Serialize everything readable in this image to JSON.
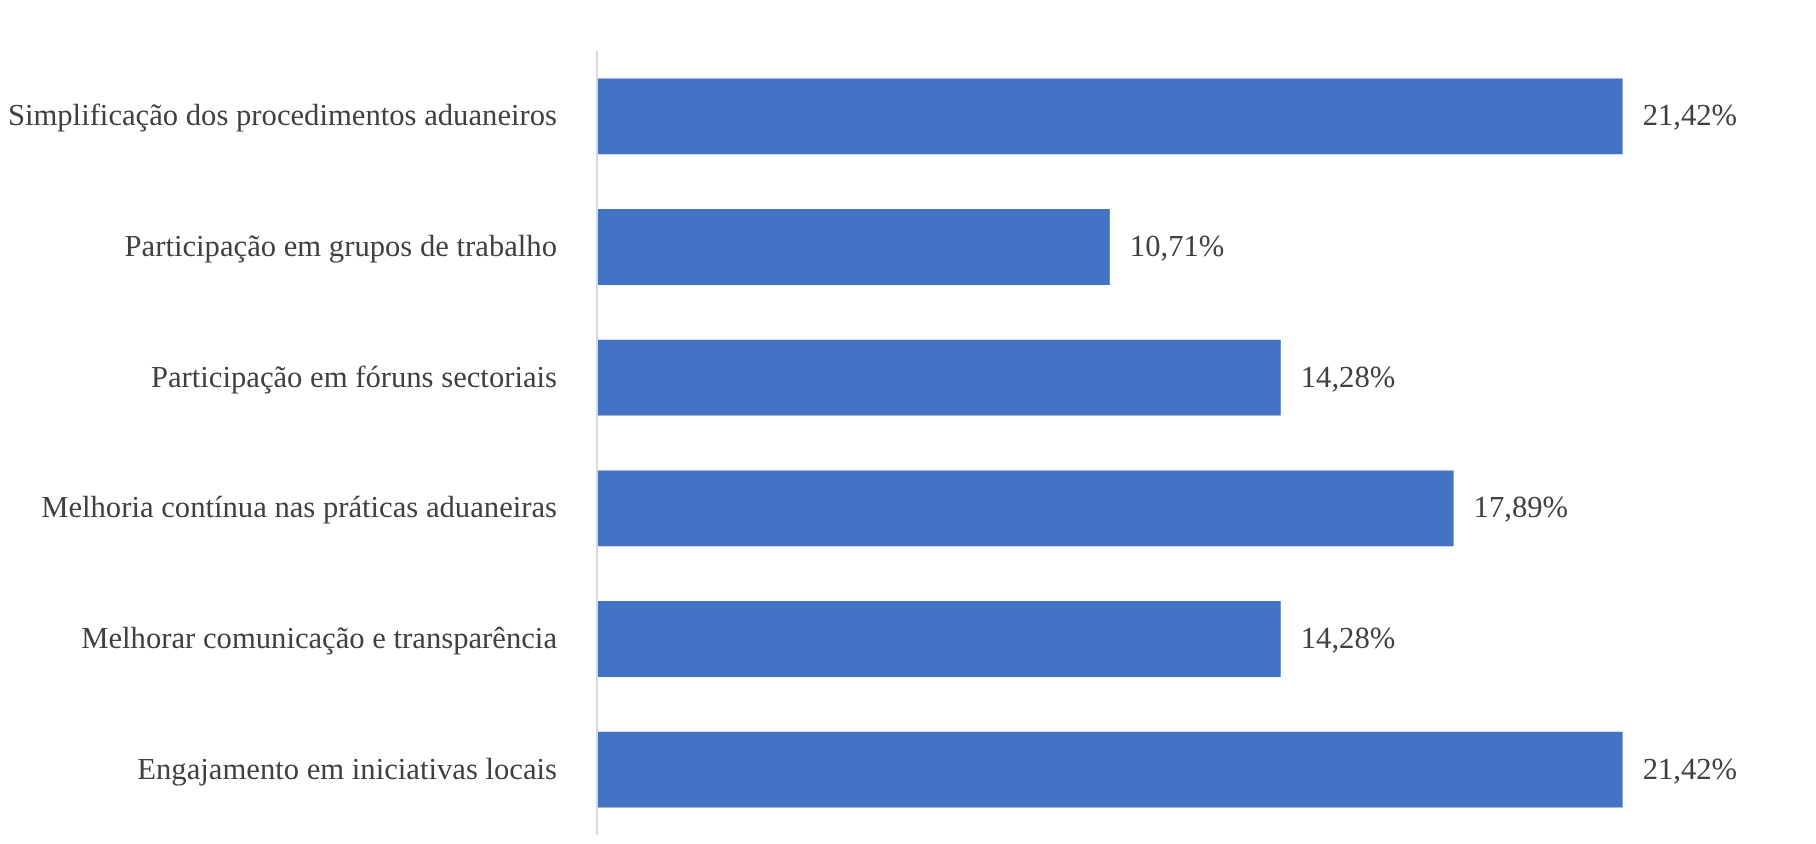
{
  "chart_data": {
    "type": "bar",
    "orientation": "horizontal",
    "categories": [
      "Simplificação dos procedimentos aduaneiros",
      "Participação em grupos de trabalho",
      "Participação em fóruns sectoriais",
      "Melhoria contínua nas práticas aduaneiras",
      "Melhorar comunicação e transparência",
      "Engajamento em iniciativas locais"
    ],
    "values": [
      21.42,
      10.71,
      14.28,
      17.89,
      14.28,
      21.42
    ],
    "value_labels": [
      "21,42%",
      "10,71%",
      "14,28%",
      "17,89%",
      "14,28%",
      "21,42%"
    ],
    "color": "#4472c4"
  }
}
